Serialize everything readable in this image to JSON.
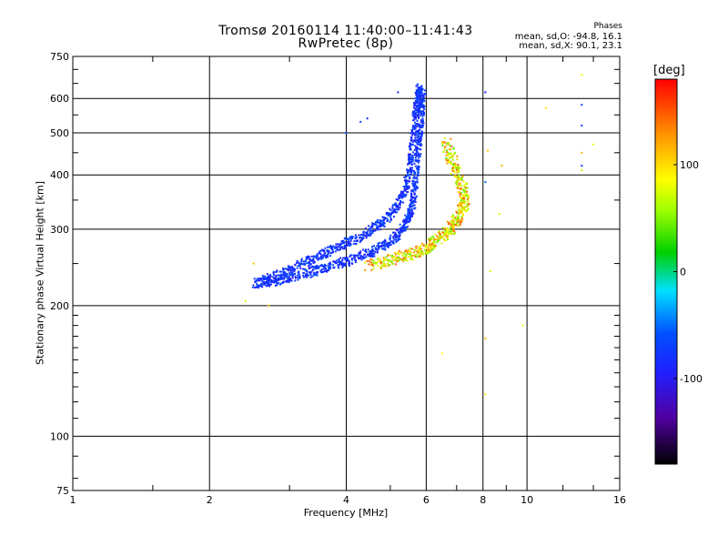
{
  "chart_data": {
    "type": "scatter",
    "title": "Tromsø 20160114 11:40:00–11:41:43",
    "subtitle": "RwPretec (8p)",
    "xlabel": "Frequency [MHz]",
    "ylabel": "Stationary phase Virtual Height [km]",
    "x_scale": "log",
    "y_scale": "log",
    "xlim": [
      1,
      16
    ],
    "ylim": [
      75,
      750
    ],
    "x_ticks": [
      1,
      2,
      4,
      6,
      8,
      10,
      16
    ],
    "y_ticks": [
      75,
      100,
      200,
      300,
      400,
      500,
      600,
      750
    ],
    "grid": true,
    "phase_legend": {
      "heading": "Phases",
      "o_line": "mean, sd,O: -94.8, 16.1",
      "x_line": "mean, sd,X:  90.1, 23.1"
    },
    "colorbar": {
      "label": "[deg]",
      "ticks": [
        100,
        0,
        -100
      ],
      "range": [
        -180,
        180
      ],
      "colormap": "rainbow"
    },
    "series": [
      {
        "name": "O",
        "color_value": -94.8,
        "trace_lower": [
          [
            2.5,
            225
          ],
          [
            2.8,
            228
          ],
          [
            3.2,
            236
          ],
          [
            3.6,
            245
          ],
          [
            4.0,
            253
          ],
          [
            4.5,
            265
          ],
          [
            5.0,
            280
          ],
          [
            5.4,
            305
          ],
          [
            5.6,
            340
          ],
          [
            5.7,
            400
          ],
          [
            5.8,
            480
          ],
          [
            5.85,
            560
          ],
          [
            5.9,
            620
          ]
        ],
        "trace_upper": [
          [
            2.6,
            228
          ],
          [
            3.0,
            240
          ],
          [
            3.4,
            258
          ],
          [
            3.8,
            272
          ],
          [
            4.2,
            285
          ],
          [
            4.7,
            305
          ],
          [
            5.1,
            330
          ],
          [
            5.4,
            370
          ],
          [
            5.55,
            430
          ],
          [
            5.65,
            520
          ],
          [
            5.75,
            600
          ],
          [
            5.8,
            640
          ]
        ],
        "isolated": [
          [
            4.0,
            500
          ],
          [
            4.3,
            530
          ],
          [
            4.45,
            540
          ],
          [
            5.2,
            620
          ],
          [
            8.1,
            620
          ],
          [
            8.1,
            385
          ],
          [
            13.2,
            580
          ],
          [
            13.2,
            520
          ],
          [
            13.2,
            420
          ]
        ]
      },
      {
        "name": "X",
        "color_value": 90.1,
        "trace": [
          [
            4.5,
            248
          ],
          [
            5.0,
            255
          ],
          [
            5.5,
            262
          ],
          [
            6.0,
            270
          ],
          [
            6.4,
            285
          ],
          [
            6.8,
            300
          ],
          [
            7.1,
            320
          ],
          [
            7.3,
            345
          ],
          [
            7.2,
            380
          ],
          [
            6.9,
            420
          ],
          [
            6.6,
            480
          ]
        ],
        "isolated": [
          [
            2.5,
            250
          ],
          [
            2.4,
            205
          ],
          [
            2.7,
            200
          ],
          [
            8.2,
            455
          ],
          [
            8.3,
            240
          ],
          [
            8.8,
            420
          ],
          [
            8.7,
            325
          ],
          [
            6.5,
            155
          ],
          [
            8.1,
            168
          ],
          [
            8.1,
            125
          ],
          [
            9.8,
            180
          ],
          [
            13.2,
            450
          ],
          [
            13.2,
            410
          ],
          [
            13.2,
            680
          ],
          [
            11.0,
            570
          ],
          [
            14.0,
            470
          ]
        ]
      }
    ]
  }
}
